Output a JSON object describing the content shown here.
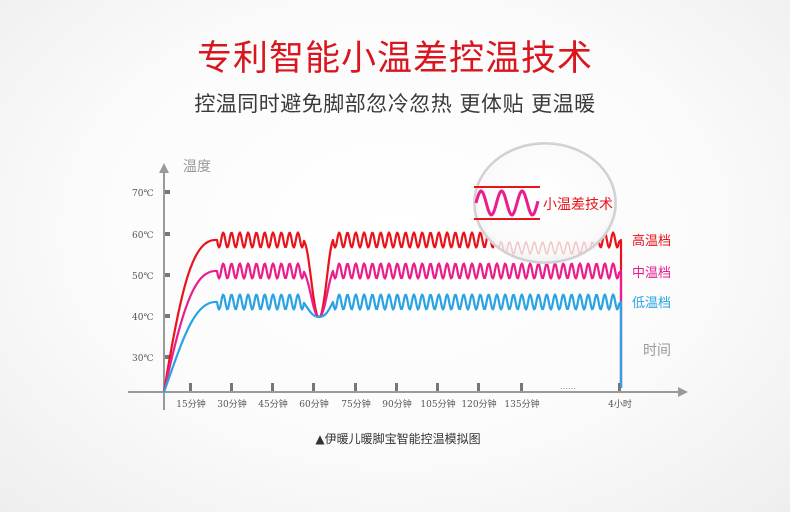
{
  "header": {
    "title": "专利智能小温差控温技术",
    "subtitle": "控温同时避免脚部忽冷忽热 更体贴 更温暖"
  },
  "colors": {
    "high": "#e8141c",
    "mid": "#ea1d8c",
    "low": "#29a3e1",
    "axis": "#9a9a9a",
    "title": "#d9151e"
  },
  "chart_data": {
    "type": "line",
    "ylabel": "温度",
    "xlabel": "时间",
    "caption": "▲伊暖儿暖脚宝智能控温模拟图",
    "y_ticks": [
      "70℃",
      "60℃",
      "50℃",
      "40℃",
      "30℃"
    ],
    "y_tick_values": [
      70,
      60,
      50,
      40,
      30
    ],
    "ylim": [
      20,
      75
    ],
    "x_ticks": [
      "15分钟",
      "30分钟",
      "45分钟",
      "60分钟",
      "75分钟",
      "90分钟",
      "105分钟",
      "120分钟",
      "135分钟",
      "4小时"
    ],
    "x_ellipsis": "……",
    "series": [
      {
        "name": "高温档",
        "level": 60,
        "ripple": 1.8,
        "dip": 40
      },
      {
        "name": "中温档",
        "level": 52,
        "ripple": 1.8,
        "dip": 40
      },
      {
        "name": "低温档",
        "level": 44,
        "ripple": 1.8,
        "dip": 40
      }
    ],
    "annotation": "小温差技术",
    "grid": false,
    "legend": "right"
  }
}
